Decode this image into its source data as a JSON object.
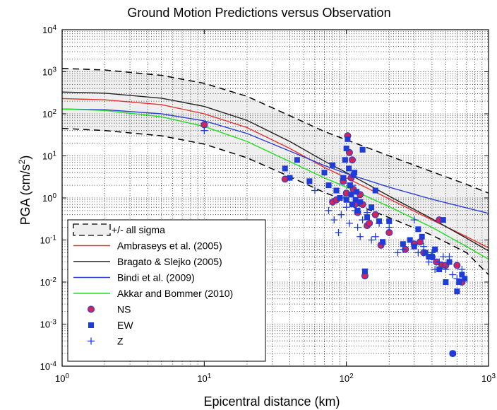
{
  "chart_data": {
    "type": "scatter",
    "title": "Ground Motion Predictions versus Observation",
    "xlabel": "Epicentral distance (km)",
    "ylabel_text": "PGA (cm/s",
    "ylabel_sup": "2",
    "ylabel_close": ")",
    "xscale": "log",
    "yscale": "log",
    "xlim": [
      1,
      1000
    ],
    "ylim": [
      0.0001,
      10000
    ],
    "grid": "on (dotted, major and minor)",
    "legend_position": "bottom-left",
    "x_ticks": [
      {
        "base": "10",
        "exp": "0",
        "value": 1
      },
      {
        "base": "10",
        "exp": "1",
        "value": 10
      },
      {
        "base": "10",
        "exp": "2",
        "value": 100
      },
      {
        "base": "10",
        "exp": "3",
        "value": 1000
      }
    ],
    "y_ticks": [
      {
        "base": "10",
        "exp": "-4",
        "value": 0.0001
      },
      {
        "base": "10",
        "exp": "-3",
        "value": 0.001
      },
      {
        "base": "10",
        "exp": "-2",
        "value": 0.01
      },
      {
        "base": "10",
        "exp": "-1",
        "value": 0.1
      },
      {
        "base": "10",
        "exp": "0",
        "value": 1
      },
      {
        "base": "10",
        "exp": "1",
        "value": 10
      },
      {
        "base": "10",
        "exp": "2",
        "value": 100
      },
      {
        "base": "10",
        "exp": "3",
        "value": 1000
      },
      {
        "base": "10",
        "exp": "4",
        "value": 10000
      }
    ],
    "sigma_band": {
      "name": "+/- all sigma",
      "color": "#000000",
      "fill": "#efefef",
      "x": [
        1,
        2,
        5,
        10,
        20,
        40,
        70,
        100,
        200,
        400,
        700,
        1000
      ],
      "upper": [
        1200,
        1100,
        820,
        530,
        260,
        90,
        38,
        24,
        10,
        4.2,
        2.1,
        1.3
      ],
      "lower": [
        45,
        40,
        30,
        19,
        9,
        3.2,
        1.35,
        0.85,
        0.34,
        0.13,
        0.05,
        0.015
      ]
    },
    "series": [
      {
        "name": "Ambraseys et al. (2005)",
        "kind": "line",
        "color": "#e8302e",
        "x": [
          1,
          2,
          5,
          10,
          20,
          40,
          70,
          100,
          200,
          400,
          700,
          1000
        ],
        "y": [
          230,
          215,
          165,
          100,
          47,
          15,
          5.3,
          3,
          0.95,
          0.3,
          0.12,
          0.065
        ]
      },
      {
        "name": "Bragato & Slejko (2005)",
        "kind": "line",
        "color": "#222222",
        "x": [
          1,
          2,
          5,
          10,
          20,
          40,
          70,
          100,
          200,
          400,
          700,
          1000
        ],
        "y": [
          330,
          310,
          235,
          150,
          70,
          22,
          7.5,
          4,
          1.1,
          0.32,
          0.11,
          0.055
        ]
      },
      {
        "name": "Bindi et al. (2009)",
        "kind": "line",
        "color": "#2a3fd6",
        "x": [
          1,
          2,
          5,
          10,
          20,
          40,
          70,
          100,
          200,
          400,
          700,
          1000
        ],
        "y": [
          130,
          125,
          100,
          68,
          34,
          13,
          5.9,
          3.8,
          1.8,
          0.93,
          0.58,
          0.43
        ]
      },
      {
        "name": "Akkar and Bommer (2010)",
        "kind": "line",
        "color": "#22dd22",
        "x": [
          1,
          2,
          5,
          10,
          20,
          40,
          70,
          100,
          200,
          400,
          700,
          1000
        ],
        "y": [
          130,
          120,
          85,
          50,
          22,
          7.3,
          3,
          1.8,
          0.62,
          0.2,
          0.07,
          0.035
        ]
      },
      {
        "name": "NS",
        "kind": "points",
        "marker": "circle",
        "color": "#d0245a",
        "x": [
          10,
          37,
          80,
          85,
          95,
          100,
          102,
          105,
          108,
          110,
          112,
          115,
          120,
          125,
          130,
          135,
          140,
          145,
          160,
          175,
          200,
          260,
          300,
          330,
          350,
          400,
          430,
          450,
          470,
          500,
          560,
          600,
          650
        ],
        "y": [
          55,
          2.8,
          0.8,
          0.9,
          2.5,
          1.3,
          30,
          12,
          3,
          8,
          1.6,
          0.7,
          0.45,
          1.2,
          0.7,
          0.014,
          0.22,
          0.25,
          0.4,
          0.075,
          0.15,
          0.06,
          0.08,
          0.09,
          0.05,
          0.04,
          0.03,
          0.3,
          0.025,
          0.025,
          0.0002,
          0.025,
          0.01
        ]
      },
      {
        "name": "EW",
        "kind": "points",
        "marker": "square",
        "color": "#1f3bd8",
        "x": [
          37,
          40,
          45,
          55,
          70,
          75,
          80,
          85,
          90,
          95,
          98,
          100,
          100,
          102,
          104,
          106,
          108,
          110,
          112,
          114,
          116,
          118,
          120,
          125,
          130,
          135,
          140,
          150,
          160,
          170,
          180,
          200,
          250,
          280,
          300,
          320,
          340,
          360,
          380,
          400,
          420,
          450,
          480,
          500,
          530,
          560,
          600,
          620,
          650,
          680
        ],
        "y": [
          5,
          3,
          8,
          2.5,
          4,
          2,
          6,
          1.5,
          1,
          3,
          8,
          15,
          0.9,
          25,
          5,
          2,
          1.2,
          0.7,
          3.5,
          4,
          0.9,
          1.4,
          0.5,
          0.8,
          14,
          0.018,
          0.35,
          0.6,
          1.5,
          0.28,
          0.09,
          0.28,
          0.08,
          0.1,
          0.07,
          0.18,
          0.12,
          0.05,
          0.04,
          0.04,
          0.06,
          0.02,
          0.3,
          0.01,
          0.03,
          0.0002,
          0.006,
          0.01,
          0.015,
          0.012
        ]
      },
      {
        "name": "Z",
        "kind": "points",
        "marker": "plus",
        "color": "#1f3bd8",
        "x": [
          10,
          60,
          75,
          82,
          88,
          92,
          96,
          100,
          105,
          110,
          115,
          120,
          125,
          130,
          140,
          150,
          160,
          170,
          180,
          200,
          230,
          250,
          300,
          320,
          350,
          380,
          400,
          420,
          450,
          480,
          500,
          530,
          560,
          600,
          650
        ],
        "y": [
          40,
          1.5,
          0.5,
          0.3,
          0.15,
          0.4,
          1,
          0.6,
          0.25,
          2,
          0.5,
          0.2,
          0.12,
          0.3,
          0.45,
          0.1,
          0.12,
          0.25,
          0.08,
          0.2,
          0.05,
          0.06,
          0.3,
          0.05,
          0.07,
          0.03,
          0.05,
          0.02,
          0.03,
          0.04,
          0.02,
          0.04,
          0.015,
          0.012,
          0.02
        ]
      }
    ]
  }
}
